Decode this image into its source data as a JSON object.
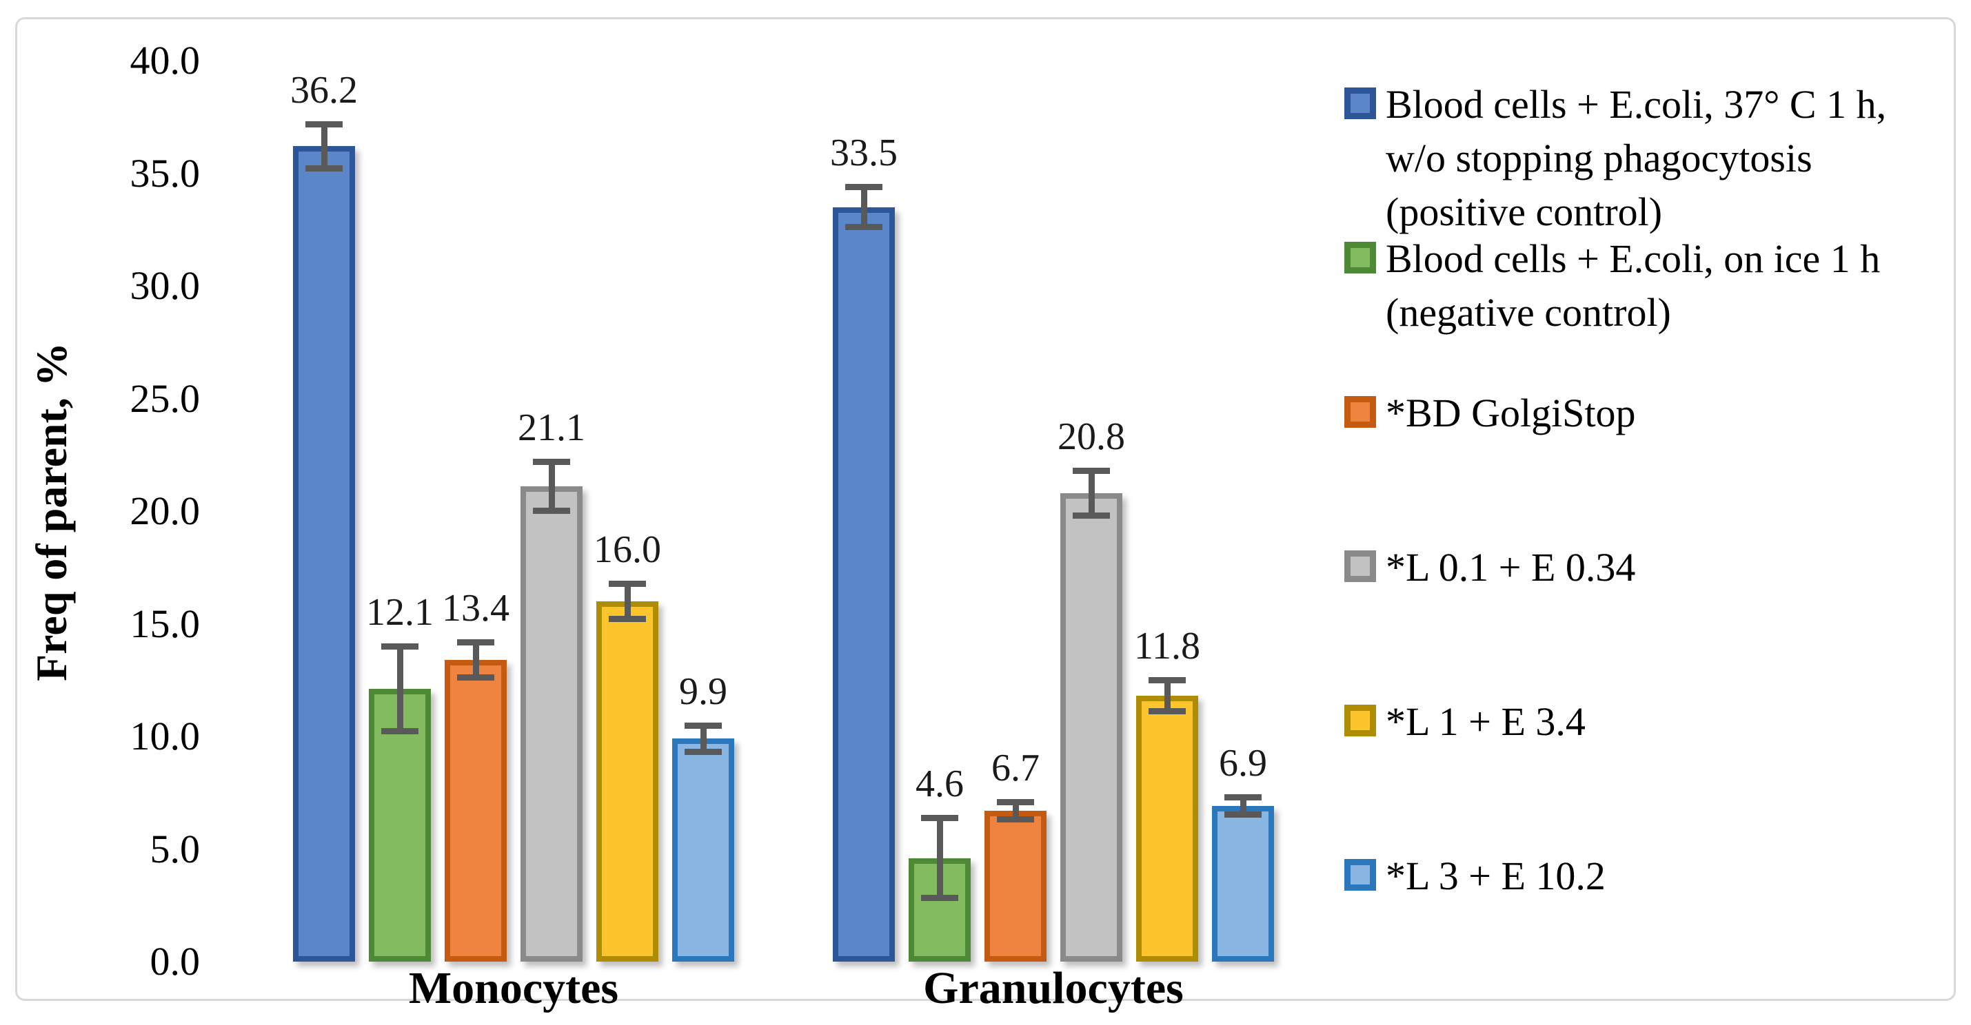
{
  "figure": {
    "background": "#ffffff",
    "frame_border_color": "#d8d8d8",
    "error_bar_color": "#595959"
  },
  "chart_data": {
    "type": "bar",
    "title": "",
    "xlabel": "",
    "ylabel": "Freq of parent, %",
    "ylim": [
      0,
      40
    ],
    "ytick_step": 5,
    "ytick_labels": [
      "0.0",
      "5.0",
      "10.0",
      "15.0",
      "20.0",
      "25.0",
      "30.0",
      "35.0",
      "40.0"
    ],
    "grid": false,
    "legend_position": "right",
    "categories": [
      "Monocytes",
      "Granulocytes"
    ],
    "series": [
      {
        "name": "Blood cells + E.coli, 37° C 1 h, w/o stopping phagocytosis (positive control)",
        "legend_lines": "Blood cells + E.coli, 37° C 1 h,\nw/o stopping phagocytosis\n(positive control)",
        "values": [
          36.2,
          33.5
        ],
        "errors": [
          1.0,
          0.9
        ],
        "fill": "#5b87c8",
        "border": "#2c5697"
      },
      {
        "name": "Blood cells + E.coli, on ice 1 h (negative control)",
        "legend_lines": "Blood cells + E.coli, on ice 1 h\n(negative control)",
        "values": [
          12.1,
          4.6
        ],
        "errors": [
          1.9,
          1.8
        ],
        "fill": "#83bb61",
        "border": "#4e8a36"
      },
      {
        "name": "*BD GolgiStop",
        "legend_lines": "*BD GolgiStop",
        "values": [
          13.4,
          6.7
        ],
        "errors": [
          0.8,
          0.4
        ],
        "fill": "#ee8440",
        "border": "#c55a11"
      },
      {
        "name": "*L 0.1 + E 0.34",
        "legend_lines": "*L 0.1 + E 0.34",
        "values": [
          21.1,
          20.8
        ],
        "errors": [
          1.1,
          1.0
        ],
        "fill": "#c2c2c2",
        "border": "#8a8a8a"
      },
      {
        "name": "*L 1 + E 3.4",
        "legend_lines": "*L 1 + E 3.4",
        "values": [
          16.0,
          11.8
        ],
        "errors": [
          0.8,
          0.7
        ],
        "fill": "#fcc52b",
        "border": "#ae8c04"
      },
      {
        "name": "*L 3 + E 10.2",
        "legend_lines": "*L 3 + E 10.2",
        "values": [
          9.9,
          6.9
        ],
        "errors": [
          0.6,
          0.4
        ],
        "fill": "#8ab6e3",
        "border": "#2b77bc"
      }
    ]
  }
}
